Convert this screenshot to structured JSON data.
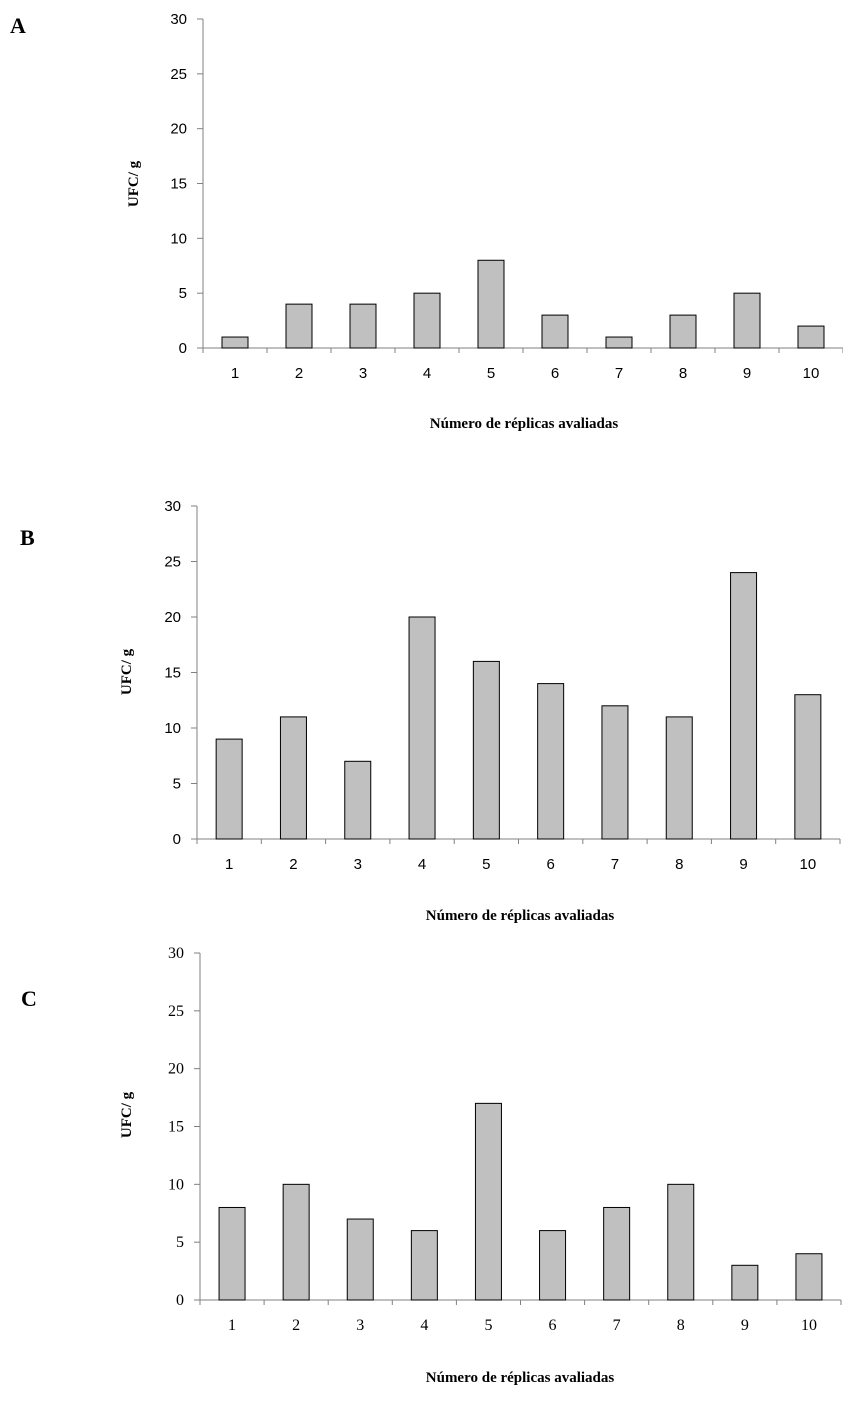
{
  "chart_data": [
    {
      "type": "bar",
      "panel": "A",
      "categories": [
        "1",
        "2",
        "3",
        "4",
        "5",
        "6",
        "7",
        "8",
        "9",
        "10"
      ],
      "values": [
        1,
        4,
        4,
        5,
        8,
        3,
        1,
        3,
        5,
        2
      ],
      "title": "",
      "xlabel": "Número de réplicas avaliadas",
      "ylabel": "UFC/ g",
      "ylim": [
        0,
        30
      ],
      "yticks": [
        "0",
        "5",
        "10",
        "15",
        "20",
        "25",
        "30"
      ],
      "grid": false,
      "bar_color": "#c0c0c0"
    },
    {
      "type": "bar",
      "panel": "B",
      "categories": [
        "1",
        "2",
        "3",
        "4",
        "5",
        "6",
        "7",
        "8",
        "9",
        "10"
      ],
      "values": [
        9,
        11,
        7,
        20,
        16,
        14,
        12,
        11,
        24,
        13
      ],
      "title": "",
      "xlabel": "Número de réplicas avaliadas",
      "ylabel": "UFC/ g",
      "ylim": [
        0,
        30
      ],
      "yticks": [
        "0",
        "5",
        "10",
        "15",
        "20",
        "25",
        "30"
      ],
      "grid": false,
      "bar_color": "#c0c0c0"
    },
    {
      "type": "bar",
      "panel": "C",
      "categories": [
        "1",
        "2",
        "3",
        "4",
        "5",
        "6",
        "7",
        "8",
        "9",
        "10"
      ],
      "values": [
        8,
        10,
        7,
        6,
        17,
        6,
        8,
        10,
        3,
        4
      ],
      "title": "",
      "xlabel": "Número de réplicas avaliadas",
      "ylabel": "UFC/ g",
      "ylim": [
        0,
        30
      ],
      "yticks": [
        "0",
        "5",
        "10",
        "15",
        "20",
        "25",
        "30"
      ],
      "grid": false,
      "bar_color": "#c0c0c0"
    }
  ]
}
